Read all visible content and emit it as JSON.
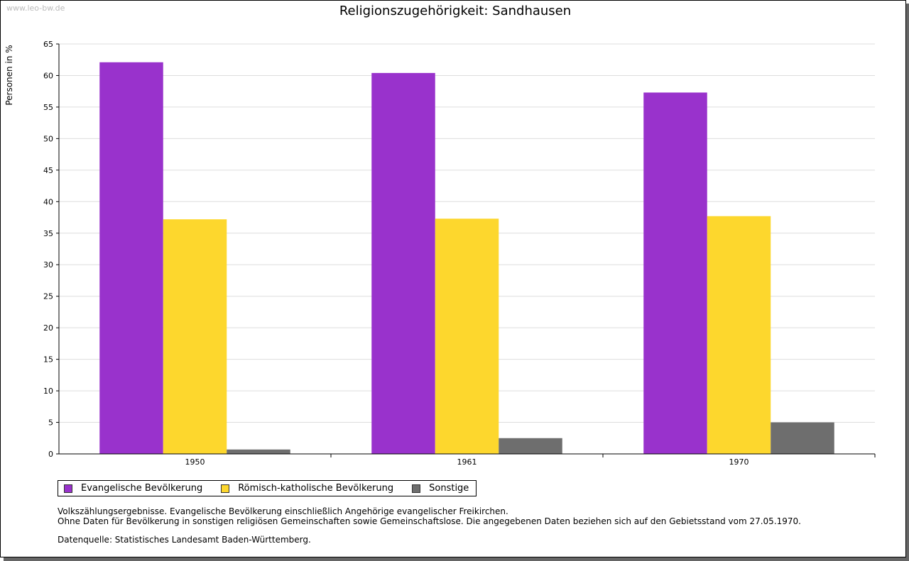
{
  "watermark": "www.leo-bw.de",
  "chart_data": {
    "type": "bar",
    "title": "Religionszugehörigkeit: Sandhausen",
    "ylabel": "Personen in %",
    "xlabel": "",
    "ylim": [
      0,
      65
    ],
    "yticks": [
      0,
      5,
      10,
      15,
      20,
      25,
      30,
      35,
      40,
      45,
      50,
      55,
      60,
      65
    ],
    "grid": true,
    "legend_position": "bottom-left",
    "categories": [
      "1950",
      "1961",
      "1970"
    ],
    "series": [
      {
        "name": "Evangelische Bevölkerung",
        "color": "#9932cc",
        "values": [
          62.1,
          60.4,
          57.3
        ]
      },
      {
        "name": "Römisch-katholische Bevölkerung",
        "color": "#fdd72d",
        "values": [
          37.2,
          37.3,
          37.7
        ]
      },
      {
        "name": "Sonstige",
        "color": "#6e6e6e",
        "values": [
          0.7,
          2.5,
          5.0
        ]
      }
    ]
  },
  "notes": {
    "line1": "Volkszählungsergebnisse. Evangelische Bevölkerung einschließlich Angehörige evangelischer Freikirchen.",
    "line2": "Ohne Daten für Bevölkerung in sonstigen religiösen Gemeinschaften sowie Gemeinschaftslose. Die angegebenen Daten beziehen sich auf den Gebietsstand vom 27.05.1970.",
    "source": "Datenquelle: Statistisches Landesamt Baden-Württemberg."
  }
}
